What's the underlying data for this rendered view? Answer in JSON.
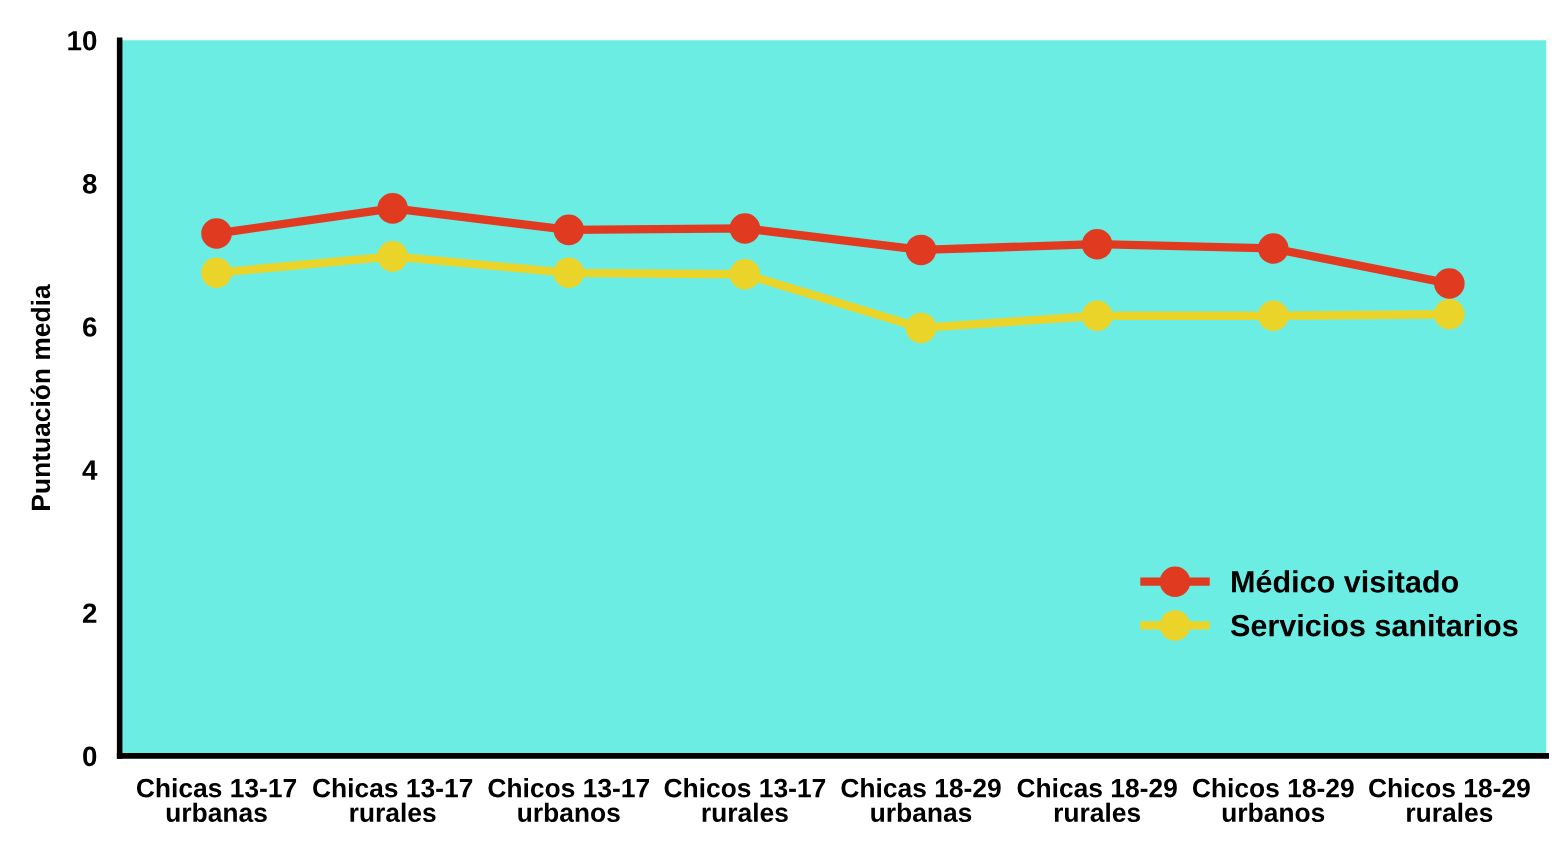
{
  "chart_data": {
    "type": "line",
    "ylabel": "Puntuación media",
    "categories": [
      "Chicas 13-17 urbanas",
      "Chicas 13-17 rurales",
      "Chicos 13-17 urbanos",
      "Chicos 13-17 rurales",
      "Chicas 18-29 urbanas",
      "Chicas 18-29 rurales",
      "Chicos 18-29 urbanos",
      "Chicos 18-29 rurales"
    ],
    "series": [
      {
        "name": "Médico visitado",
        "color": "#e03a20",
        "values": [
          7.3,
          7.65,
          7.35,
          7.37,
          7.07,
          7.15,
          7.09,
          6.6
        ]
      },
      {
        "name": "Servicios sanitarios",
        "color": "#ead42a",
        "values": [
          6.75,
          6.98,
          6.75,
          6.73,
          5.98,
          6.15,
          6.15,
          6.17
        ]
      }
    ],
    "ylim": [
      0,
      10
    ],
    "yticks": [
      0,
      2,
      4,
      6,
      8,
      10
    ],
    "grid": false,
    "legend": "bottom right",
    "marker": "circle",
    "line_style": "solid"
  }
}
